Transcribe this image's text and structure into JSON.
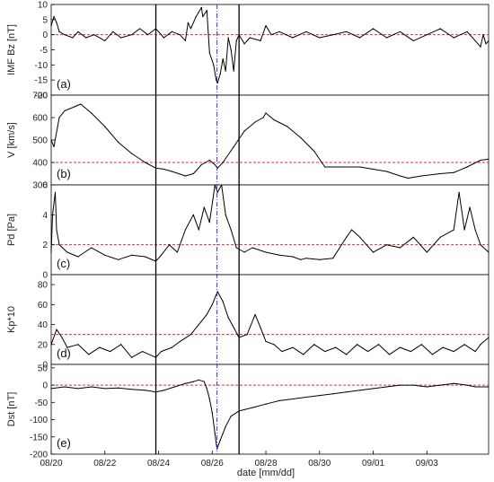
{
  "chart_data": {
    "type": "line",
    "xlabel": "date [mm/dd]",
    "x_ticks": [
      "08/20",
      "08/22",
      "08/24",
      "08/26",
      "08/28",
      "08/30",
      "09/01",
      "09/03"
    ],
    "x_range_days": [
      0,
      16.3
    ],
    "markers": [
      {
        "style": "black-solid",
        "x_days": 3.9
      },
      {
        "style": "blue-dashdot",
        "x_days": 6.18
      },
      {
        "style": "black-solid",
        "x_days": 7.0
      }
    ],
    "colors": {
      "data": "#000000",
      "threshold": "#e03030",
      "marker_black": "#000000",
      "marker_blue": "#3030e0"
    },
    "panels": [
      {
        "id": "imf",
        "label": "(a)",
        "ylabel": "IMF Bz [nT]",
        "ylim": [
          -20,
          10
        ],
        "yticks": [
          -20,
          -15,
          -10,
          -5,
          0,
          5,
          10
        ],
        "threshold": 0,
        "series": [
          [
            0,
            3
          ],
          [
            0.1,
            6
          ],
          [
            0.2,
            4
          ],
          [
            0.3,
            1
          ],
          [
            0.5,
            0
          ],
          [
            0.8,
            -1
          ],
          [
            1.0,
            1
          ],
          [
            1.3,
            -1
          ],
          [
            1.6,
            0
          ],
          [
            2.0,
            -2
          ],
          [
            2.3,
            1
          ],
          [
            2.6,
            -1
          ],
          [
            3.0,
            0
          ],
          [
            3.3,
            2
          ],
          [
            3.6,
            0
          ],
          [
            3.9,
            2
          ],
          [
            4.2,
            -1
          ],
          [
            4.5,
            1
          ],
          [
            4.8,
            0
          ],
          [
            5.0,
            -2
          ],
          [
            5.1,
            4
          ],
          [
            5.2,
            2
          ],
          [
            5.4,
            6
          ],
          [
            5.6,
            9
          ],
          [
            5.65,
            6
          ],
          [
            5.8,
            8
          ],
          [
            5.9,
            -6
          ],
          [
            6.05,
            -10
          ],
          [
            6.15,
            -15
          ],
          [
            6.2,
            -16
          ],
          [
            6.3,
            -13
          ],
          [
            6.4,
            -8
          ],
          [
            6.5,
            -12
          ],
          [
            6.6,
            -1
          ],
          [
            6.7,
            -5
          ],
          [
            6.8,
            -12
          ],
          [
            6.9,
            -2
          ],
          [
            7.0,
            0
          ],
          [
            7.2,
            -3
          ],
          [
            7.4,
            -1
          ],
          [
            7.8,
            -2
          ],
          [
            8.0,
            3
          ],
          [
            8.2,
            0
          ],
          [
            8.5,
            1
          ],
          [
            9.0,
            -1
          ],
          [
            9.5,
            1
          ],
          [
            10.0,
            -1
          ],
          [
            10.5,
            0
          ],
          [
            11.0,
            1
          ],
          [
            11.5,
            -1
          ],
          [
            12.0,
            2
          ],
          [
            12.5,
            -1
          ],
          [
            13.0,
            1
          ],
          [
            13.5,
            -2
          ],
          [
            14.0,
            0
          ],
          [
            14.5,
            2
          ],
          [
            15.0,
            -1
          ],
          [
            15.5,
            1
          ],
          [
            15.8,
            -2
          ],
          [
            16.0,
            -4
          ],
          [
            16.1,
            0
          ],
          [
            16.2,
            -3
          ],
          [
            16.3,
            -2
          ]
        ]
      },
      {
        "id": "v",
        "label": "(b)",
        "ylabel": "V [km/s]",
        "ylim": [
          300,
          700
        ],
        "yticks": [
          300,
          400,
          500,
          600,
          700
        ],
        "threshold": 400,
        "series": [
          [
            0,
            500
          ],
          [
            0.1,
            470
          ],
          [
            0.3,
            600
          ],
          [
            0.5,
            630
          ],
          [
            0.9,
            650
          ],
          [
            1.1,
            660
          ],
          [
            1.5,
            620
          ],
          [
            2.0,
            560
          ],
          [
            2.5,
            490
          ],
          [
            3.0,
            440
          ],
          [
            3.5,
            400
          ],
          [
            3.9,
            375
          ],
          [
            4.2,
            370
          ],
          [
            4.5,
            360
          ],
          [
            5.0,
            340
          ],
          [
            5.3,
            350
          ],
          [
            5.6,
            390
          ],
          [
            5.9,
            410
          ],
          [
            6.1,
            390
          ],
          [
            6.2,
            375
          ],
          [
            6.4,
            400
          ],
          [
            6.8,
            470
          ],
          [
            7.2,
            540
          ],
          [
            7.6,
            580
          ],
          [
            7.9,
            600
          ],
          [
            8.0,
            620
          ],
          [
            8.3,
            590
          ],
          [
            8.8,
            560
          ],
          [
            9.3,
            510
          ],
          [
            9.8,
            450
          ],
          [
            10.2,
            380
          ],
          [
            10.8,
            380
          ],
          [
            11.5,
            380
          ],
          [
            12.0,
            370
          ],
          [
            12.5,
            360
          ],
          [
            13.0,
            340
          ],
          [
            13.3,
            330
          ],
          [
            13.8,
            340
          ],
          [
            14.5,
            350
          ],
          [
            15.0,
            355
          ],
          [
            15.5,
            380
          ],
          [
            16.0,
            410
          ],
          [
            16.3,
            415
          ]
        ]
      },
      {
        "id": "pd",
        "label": "(c)",
        "ylabel": "Pd [Pa]",
        "ylim": [
          0,
          6
        ],
        "yticks": [
          0,
          2,
          4,
          6
        ],
        "threshold": 2,
        "series": [
          [
            0,
            1.5
          ],
          [
            0.05,
            4
          ],
          [
            0.15,
            5.5
          ],
          [
            0.2,
            3
          ],
          [
            0.3,
            2
          ],
          [
            0.6,
            1.5
          ],
          [
            1.0,
            1.2
          ],
          [
            1.5,
            1.8
          ],
          [
            2.0,
            1.3
          ],
          [
            2.5,
            1.0
          ],
          [
            3.0,
            1.3
          ],
          [
            3.5,
            1.2
          ],
          [
            3.9,
            0.9
          ],
          [
            4.1,
            1.3
          ],
          [
            4.4,
            2
          ],
          [
            4.7,
            1.5
          ],
          [
            5.0,
            3
          ],
          [
            5.3,
            4
          ],
          [
            5.5,
            3
          ],
          [
            5.7,
            4.5
          ],
          [
            5.9,
            3.5
          ],
          [
            6.1,
            6
          ],
          [
            6.2,
            5.5
          ],
          [
            6.35,
            6
          ],
          [
            6.5,
            4
          ],
          [
            6.7,
            3
          ],
          [
            6.9,
            1.8
          ],
          [
            7.2,
            1.5
          ],
          [
            7.5,
            1.8
          ],
          [
            8.0,
            1.5
          ],
          [
            8.5,
            1.3
          ],
          [
            9.0,
            1.2
          ],
          [
            9.3,
            1.0
          ],
          [
            9.5,
            1.1
          ],
          [
            10.0,
            1.0
          ],
          [
            10.5,
            1.1
          ],
          [
            11.0,
            2.5
          ],
          [
            11.2,
            3
          ],
          [
            11.5,
            2.5
          ],
          [
            12.0,
            1.5
          ],
          [
            12.5,
            2
          ],
          [
            13.0,
            1.8
          ],
          [
            13.5,
            2.5
          ],
          [
            14.0,
            1.5
          ],
          [
            14.5,
            2.5
          ],
          [
            15.0,
            3
          ],
          [
            15.2,
            5.5
          ],
          [
            15.4,
            3
          ],
          [
            15.6,
            4.5
          ],
          [
            15.8,
            3
          ],
          [
            16.0,
            2
          ],
          [
            16.3,
            1.5
          ]
        ]
      },
      {
        "id": "kp",
        "label": "(d)",
        "ylabel": "Kp*10",
        "ylim": [
          0,
          90
        ],
        "yticks": [
          0,
          20,
          40,
          60,
          80
        ],
        "threshold": 30,
        "series": [
          [
            0,
            20
          ],
          [
            0.2,
            35
          ],
          [
            0.4,
            27
          ],
          [
            0.6,
            17
          ],
          [
            1.0,
            20
          ],
          [
            1.4,
            10
          ],
          [
            1.8,
            17
          ],
          [
            2.2,
            13
          ],
          [
            2.6,
            20
          ],
          [
            3.0,
            7
          ],
          [
            3.4,
            13
          ],
          [
            3.9,
            7
          ],
          [
            4.1,
            13
          ],
          [
            4.5,
            17
          ],
          [
            4.8,
            23
          ],
          [
            5.2,
            30
          ],
          [
            5.5,
            40
          ],
          [
            5.8,
            50
          ],
          [
            6.0,
            60
          ],
          [
            6.2,
            73
          ],
          [
            6.4,
            63
          ],
          [
            6.6,
            47
          ],
          [
            6.8,
            37
          ],
          [
            7.0,
            27
          ],
          [
            7.3,
            30
          ],
          [
            7.6,
            50
          ],
          [
            7.8,
            37
          ],
          [
            8.0,
            23
          ],
          [
            8.3,
            20
          ],
          [
            8.6,
            13
          ],
          [
            9.0,
            17
          ],
          [
            9.4,
            10
          ],
          [
            9.8,
            20
          ],
          [
            10.2,
            13
          ],
          [
            10.6,
            17
          ],
          [
            11.0,
            10
          ],
          [
            11.4,
            20
          ],
          [
            11.8,
            13
          ],
          [
            12.2,
            20
          ],
          [
            12.6,
            10
          ],
          [
            13.0,
            17
          ],
          [
            13.4,
            13
          ],
          [
            13.8,
            20
          ],
          [
            14.2,
            10
          ],
          [
            14.6,
            17
          ],
          [
            15.0,
            13
          ],
          [
            15.4,
            20
          ],
          [
            15.8,
            13
          ],
          [
            16.0,
            20
          ],
          [
            16.3,
            27
          ]
        ]
      },
      {
        "id": "dst",
        "label": "(e)",
        "ylabel": "Dst [nT]",
        "ylim": [
          -200,
          60
        ],
        "yticks": [
          -200,
          -150,
          -100,
          -50,
          0,
          50
        ],
        "threshold": 0,
        "series": [
          [
            0,
            -10
          ],
          [
            0.5,
            -5
          ],
          [
            1.0,
            -10
          ],
          [
            1.5,
            -5
          ],
          [
            2.0,
            -10
          ],
          [
            2.5,
            -8
          ],
          [
            3.0,
            -12
          ],
          [
            3.5,
            -15
          ],
          [
            3.9,
            -20
          ],
          [
            4.2,
            -15
          ],
          [
            4.6,
            -5
          ],
          [
            5.0,
            5
          ],
          [
            5.3,
            10
          ],
          [
            5.5,
            15
          ],
          [
            5.7,
            10
          ],
          [
            5.8,
            -10
          ],
          [
            5.9,
            -40
          ],
          [
            6.0,
            -80
          ],
          [
            6.1,
            -140
          ],
          [
            6.18,
            -185
          ],
          [
            6.3,
            -160
          ],
          [
            6.5,
            -120
          ],
          [
            6.7,
            -90
          ],
          [
            7.0,
            -75
          ],
          [
            7.5,
            -65
          ],
          [
            8.0,
            -55
          ],
          [
            8.5,
            -45
          ],
          [
            9.0,
            -40
          ],
          [
            9.5,
            -35
          ],
          [
            10.0,
            -30
          ],
          [
            10.5,
            -25
          ],
          [
            11.0,
            -20
          ],
          [
            11.5,
            -15
          ],
          [
            12.0,
            -10
          ],
          [
            12.5,
            -5
          ],
          [
            13.0,
            0
          ],
          [
            13.5,
            0
          ],
          [
            14.0,
            -5
          ],
          [
            14.5,
            0
          ],
          [
            15.0,
            5
          ],
          [
            15.5,
            0
          ],
          [
            15.8,
            -5
          ],
          [
            16.3,
            -5
          ]
        ]
      }
    ]
  }
}
